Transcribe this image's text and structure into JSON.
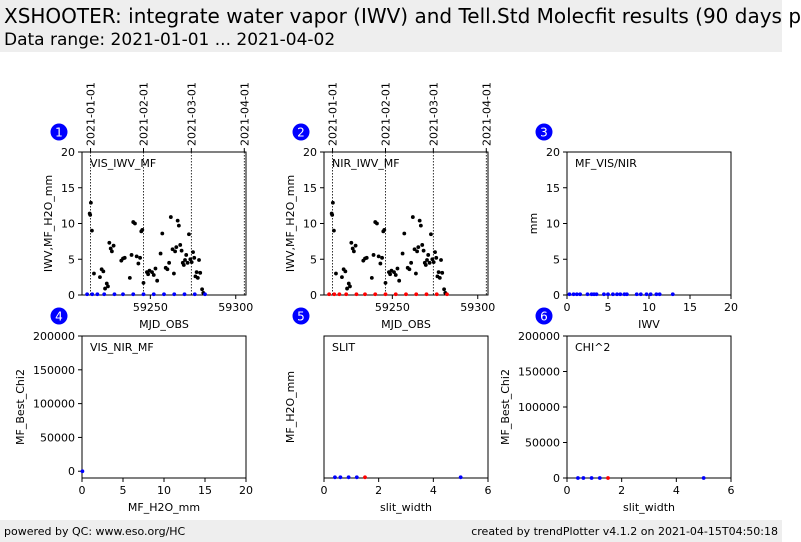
{
  "header": {
    "title": "XSHOOTER: integrate water vapor (IWV) and Tell.Std Molecfit results (90 days p",
    "subtitle": "Data range: 2021-01-01 ... 2021-04-02"
  },
  "footer": {
    "left": "powered by QC: www.eso.org/HC",
    "right": "created by trendPlotter v4.1.2 on 2021-04-15T04:50:18"
  },
  "colors": {
    "badge": "#0000ff",
    "black": "#000000",
    "blue": "#0000ff",
    "red": "#ff0000",
    "header_bg": "#eeeeee"
  },
  "chart_data": [
    {
      "id": "1",
      "type": "scatter",
      "label": "VIS_IWV_MF",
      "xlabel": "MJD_OBS",
      "ylabel": "IWV,MF_H2O_mm",
      "xlim": [
        59210,
        59306
      ],
      "ylim": [
        0,
        20
      ],
      "xticks": [
        59250,
        59300
      ],
      "yticks": [
        0,
        5,
        10,
        15,
        20
      ],
      "date_lines": [
        {
          "x": 59215,
          "label": "2021-01-01"
        },
        {
          "x": 59246,
          "label": "2021-02-01"
        },
        {
          "x": 59274,
          "label": "2021-03-01"
        },
        {
          "x": 59305,
          "label": "2021-04-01"
        }
      ],
      "series": [
        {
          "color": "#000000",
          "points": [
            [
              59214.5,
              11.4
            ],
            [
              59214.8,
              11.2
            ],
            [
              59215.2,
              12.9
            ],
            [
              59215.8,
              9.0
            ],
            [
              59217,
              3.0
            ],
            [
              59220.5,
              2.5
            ],
            [
              59221.5,
              3.6
            ],
            [
              59222.5,
              3.3
            ],
            [
              59223.5,
              0.9
            ],
            [
              59224.5,
              1.6
            ],
            [
              59225.2,
              1.2
            ],
            [
              59226,
              7.3
            ],
            [
              59226.8,
              6.5
            ],
            [
              59227.5,
              6.1
            ],
            [
              59228.5,
              6.9
            ],
            [
              59233,
              4.8
            ],
            [
              59234,
              5.1
            ],
            [
              59235,
              5.2
            ],
            [
              59238,
              2.4
            ],
            [
              59239,
              5.6
            ],
            [
              59240,
              10.2
            ],
            [
              59241,
              10.0
            ],
            [
              59242,
              5.4
            ],
            [
              59243,
              4.4
            ],
            [
              59244,
              5.2
            ],
            [
              59244.7,
              8.9
            ],
            [
              59245.3,
              9.1
            ],
            [
              59246,
              1.7
            ],
            [
              59248,
              3.2
            ],
            [
              59248.7,
              2.9
            ],
            [
              59249.5,
              3.4
            ],
            [
              59251,
              3.2
            ],
            [
              59252,
              2.8
            ],
            [
              59253,
              3.7
            ],
            [
              59254,
              2.0
            ],
            [
              59256,
              5.8
            ],
            [
              59257,
              8.6
            ],
            [
              59259,
              3.8
            ],
            [
              59260,
              3.6
            ],
            [
              59261,
              4.5
            ],
            [
              59262,
              10.9
            ],
            [
              59263,
              6.4
            ],
            [
              59263.8,
              3.0
            ],
            [
              59264.5,
              6.1
            ],
            [
              59265.2,
              6.7
            ],
            [
              59266,
              10.4
            ],
            [
              59266.7,
              9.7
            ],
            [
              59267.5,
              7.0
            ],
            [
              59268.3,
              6.2
            ],
            [
              59269,
              4.5
            ],
            [
              59269.6,
              4.2
            ],
            [
              59270.3,
              4.9
            ],
            [
              59271,
              5.6
            ],
            [
              59271.8,
              4.5
            ],
            [
              59272.6,
              8.5
            ],
            [
              59273.4,
              5.0
            ],
            [
              59274.2,
              4.6
            ],
            [
              59275,
              6.0
            ],
            [
              59275.7,
              5.2
            ],
            [
              59276.4,
              2.6
            ],
            [
              59277.1,
              3.2
            ],
            [
              59277.8,
              2.4
            ],
            [
              59278.5,
              4.9
            ],
            [
              59279.2,
              3.1
            ],
            [
              59280.3,
              0.8
            ],
            [
              59281,
              0.3
            ]
          ]
        },
        {
          "color": "#0000ff",
          "points": [
            [
              59213,
              0.1
            ],
            [
              59216,
              0.1
            ],
            [
              59219,
              0.1
            ],
            [
              59223,
              0.1
            ],
            [
              59229,
              0.1
            ],
            [
              59234,
              0.1
            ],
            [
              59240,
              0.1
            ],
            [
              59246,
              0.1
            ],
            [
              59252,
              0.1
            ],
            [
              59258,
              0.1
            ],
            [
              59264,
              0.1
            ],
            [
              59270,
              0.1
            ],
            [
              59276,
              0.1
            ],
            [
              59282,
              0.1
            ]
          ]
        }
      ]
    },
    {
      "id": "2",
      "type": "scatter",
      "label": "NIR_IWV_MF",
      "xlabel": "MJD_OBS",
      "ylabel": "IWV,MF_H2O_mm",
      "xlim": [
        59210,
        59306
      ],
      "ylim": [
        0,
        20
      ],
      "xticks": [
        59250,
        59300
      ],
      "yticks": [
        0,
        5,
        10,
        15,
        20
      ],
      "date_lines": [
        {
          "x": 59215,
          "label": "2021-01-01"
        },
        {
          "x": 59246,
          "label": "2021-02-01"
        },
        {
          "x": 59274,
          "label": "2021-03-01"
        },
        {
          "x": 59305,
          "label": "2021-04-01"
        }
      ],
      "series": [
        {
          "color": "#000000",
          "points": [
            [
              59214.5,
              11.4
            ],
            [
              59214.8,
              11.2
            ],
            [
              59215.2,
              12.9
            ],
            [
              59215.8,
              9.0
            ],
            [
              59217,
              3.0
            ],
            [
              59220.5,
              2.5
            ],
            [
              59221.5,
              3.6
            ],
            [
              59222.5,
              3.3
            ],
            [
              59223.5,
              0.9
            ],
            [
              59224.5,
              1.6
            ],
            [
              59225.2,
              1.2
            ],
            [
              59226,
              7.3
            ],
            [
              59226.8,
              6.5
            ],
            [
              59227.5,
              6.1
            ],
            [
              59228.5,
              6.9
            ],
            [
              59233,
              4.8
            ],
            [
              59234,
              5.1
            ],
            [
              59235,
              5.2
            ],
            [
              59238,
              2.4
            ],
            [
              59239,
              5.6
            ],
            [
              59240,
              10.2
            ],
            [
              59241,
              10.0
            ],
            [
              59242,
              5.4
            ],
            [
              59243,
              4.4
            ],
            [
              59244,
              5.2
            ],
            [
              59244.7,
              8.9
            ],
            [
              59245.3,
              9.1
            ],
            [
              59246,
              1.7
            ],
            [
              59248,
              3.2
            ],
            [
              59248.7,
              2.9
            ],
            [
              59249.5,
              3.4
            ],
            [
              59251,
              3.2
            ],
            [
              59252,
              2.8
            ],
            [
              59253,
              3.7
            ],
            [
              59254,
              2.0
            ],
            [
              59256,
              5.8
            ],
            [
              59257,
              8.6
            ],
            [
              59259,
              3.8
            ],
            [
              59260,
              3.6
            ],
            [
              59261,
              4.5
            ],
            [
              59262,
              10.9
            ],
            [
              59263,
              6.4
            ],
            [
              59263.8,
              3.0
            ],
            [
              59264.5,
              6.1
            ],
            [
              59265.2,
              6.7
            ],
            [
              59266,
              10.4
            ],
            [
              59266.7,
              9.7
            ],
            [
              59267.5,
              7.0
            ],
            [
              59268.3,
              6.2
            ],
            [
              59269,
              4.5
            ],
            [
              59269.6,
              4.2
            ],
            [
              59270.3,
              4.9
            ],
            [
              59271,
              5.6
            ],
            [
              59271.8,
              4.5
            ],
            [
              59272.6,
              8.5
            ],
            [
              59273.4,
              5.0
            ],
            [
              59274.2,
              4.6
            ],
            [
              59275,
              6.0
            ],
            [
              59275.7,
              5.2
            ],
            [
              59276.4,
              2.6
            ],
            [
              59277.1,
              3.2
            ],
            [
              59277.8,
              2.4
            ],
            [
              59278.5,
              4.9
            ],
            [
              59279.2,
              3.1
            ],
            [
              59280.3,
              0.8
            ],
            [
              59281,
              0.3
            ]
          ]
        },
        {
          "color": "#ff0000",
          "points": [
            [
              59213,
              0.1
            ],
            [
              59216,
              0.1
            ],
            [
              59219,
              0.1
            ],
            [
              59223,
              0.1
            ],
            [
              59229,
              0.1
            ],
            [
              59234,
              0.1
            ],
            [
              59240,
              0.1
            ],
            [
              59246,
              0.1
            ],
            [
              59252,
              0.1
            ],
            [
              59258,
              0.1
            ],
            [
              59264,
              0.1
            ],
            [
              59270,
              0.1
            ],
            [
              59276,
              0.1
            ],
            [
              59282,
              0.1
            ]
          ]
        }
      ]
    },
    {
      "id": "3",
      "type": "scatter",
      "label": "MF_VIS/NIR",
      "xlabel": "IWV",
      "ylabel": "mm",
      "xlim": [
        0,
        20
      ],
      "ylim": [
        0,
        20
      ],
      "xticks": [
        0,
        5,
        10,
        15,
        20
      ],
      "yticks": [
        0,
        5,
        10,
        15,
        20
      ],
      "series": [
        {
          "color": "#0000ff",
          "points": [
            [
              0.3,
              0.1
            ],
            [
              0.8,
              0.1
            ],
            [
              1.2,
              0.1
            ],
            [
              1.6,
              0.1
            ],
            [
              2.5,
              0.1
            ],
            [
              3.0,
              0.1
            ],
            [
              3.3,
              0.1
            ],
            [
              3.6,
              0.1
            ],
            [
              4.5,
              0.1
            ],
            [
              5.0,
              0.1
            ],
            [
              5.6,
              0.1
            ],
            [
              6.1,
              0.1
            ],
            [
              6.5,
              0.1
            ],
            [
              7.0,
              0.1
            ],
            [
              7.3,
              0.1
            ],
            [
              8.5,
              0.1
            ],
            [
              9.0,
              0.1
            ],
            [
              9.7,
              0.1
            ],
            [
              10.2,
              0.1
            ],
            [
              10.9,
              0.1
            ],
            [
              11.3,
              0.1
            ],
            [
              12.9,
              0.1
            ]
          ]
        }
      ]
    },
    {
      "id": "4",
      "type": "scatter",
      "label": "VIS_NIR_MF",
      "xlabel": "MF_H2O_mm",
      "ylabel": "MF_Best_Chi2",
      "xlim": [
        0,
        20
      ],
      "ylim": [
        -10000,
        200000
      ],
      "xticks": [
        0,
        5,
        10,
        15,
        20
      ],
      "yticks": [
        0,
        50000,
        100000,
        150000,
        200000
      ],
      "series": [
        {
          "color": "#0000ff",
          "points": [
            [
              0.05,
              0
            ]
          ]
        }
      ]
    },
    {
      "id": "5",
      "type": "scatter",
      "label": "SLIT",
      "xlabel": "slit_width",
      "ylabel": "MF_H2O_mm",
      "xlim": [
        0,
        6
      ],
      "ylim": [
        0,
        20
      ],
      "xticks": [
        0,
        2,
        4,
        6
      ],
      "yticks": [],
      "series": [
        {
          "color": "#0000ff",
          "points": [
            [
              0.4,
              0.1
            ],
            [
              0.6,
              0.1
            ],
            [
              0.9,
              0.1
            ],
            [
              1.2,
              0.1
            ],
            [
              5.0,
              0.1
            ]
          ]
        },
        {
          "color": "#ff0000",
          "points": [
            [
              1.5,
              0.1
            ]
          ]
        }
      ]
    },
    {
      "id": "6",
      "type": "scatter",
      "label": "CHI^2",
      "xlabel": "slit_width",
      "ylabel": "MF_Best_Chi2",
      "xlim": [
        0,
        6
      ],
      "ylim": [
        0,
        200000
      ],
      "xticks": [
        0,
        2,
        4,
        6
      ],
      "yticks": [
        0,
        50000,
        100000,
        150000,
        200000
      ],
      "series": [
        {
          "color": "#0000ff",
          "points": [
            [
              0.4,
              0
            ],
            [
              0.6,
              0
            ],
            [
              0.9,
              0
            ],
            [
              1.2,
              0
            ],
            [
              5.0,
              0
            ]
          ]
        },
        {
          "color": "#ff0000",
          "points": [
            [
              1.5,
              0
            ]
          ]
        }
      ]
    }
  ]
}
